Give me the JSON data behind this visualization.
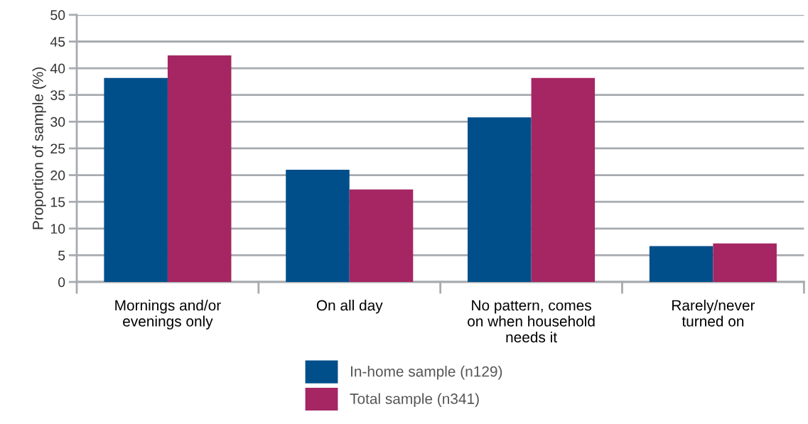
{
  "chart_data": {
    "type": "bar",
    "ylabel": "Proportion of sample (%)",
    "categories": [
      "Mornings and/or\nevenings only",
      "On all day",
      "No pattern, comes\non when household\nneeds it",
      "Rarely/never\nturned on"
    ],
    "series": [
      {
        "name": "In-home sample (n129)",
        "color": "#004f8a",
        "values": [
          38.2,
          21.0,
          30.8,
          6.7
        ]
      },
      {
        "name": "Total sample (n341)",
        "color": "#a52662",
        "values": [
          42.4,
          17.3,
          38.2,
          7.2
        ]
      }
    ],
    "ylim": [
      0,
      50
    ],
    "yticks": [
      0,
      5,
      10,
      15,
      20,
      25,
      30,
      35,
      40,
      45,
      50
    ],
    "grid": "y",
    "legend": "bottom"
  }
}
